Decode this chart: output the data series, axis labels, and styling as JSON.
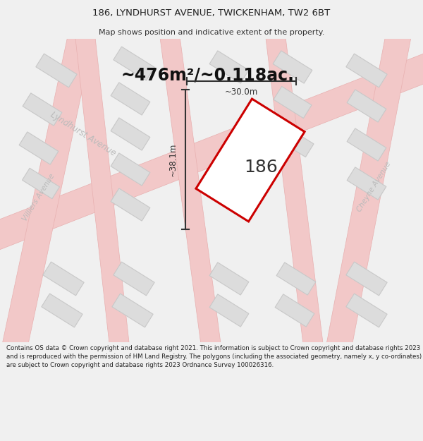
{
  "title_line1": "186, LYNDHURST AVENUE, TWICKENHAM, TW2 6BT",
  "title_line2": "Map shows position and indicative extent of the property.",
  "area_text": "~476m²/~0.118ac.",
  "property_number": "186",
  "width_label": "~30.0m",
  "height_label": "~38.1m",
  "footer_text": "Contains OS data © Crown copyright and database right 2021. This information is subject to Crown copyright and database rights 2023 and is reproduced with the permission of HM Land Registry. The polygons (including the associated geometry, namely x, y co-ordinates) are subject to Crown copyright and database rights 2023 Ordnance Survey 100026316.",
  "bg_color": "#f0f0f0",
  "map_bg": "#f8f8f8",
  "road_color": "#f2c8c8",
  "road_border_color": "#e8b0b0",
  "block_color": "#dcdcdc",
  "block_border_color": "#c8c8c8",
  "property_fill": "#ffffff",
  "property_border": "#cc0000",
  "street_label_color": "#bbbbbb",
  "dim_line_color": "#333333",
  "footer_bg": "#ffffff"
}
